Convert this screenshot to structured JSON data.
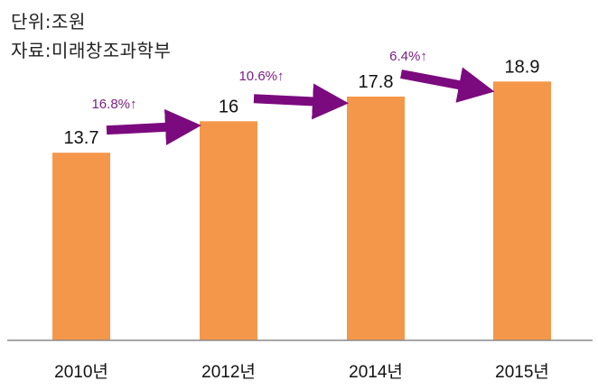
{
  "notes": {
    "unit": "단위:조원",
    "source": "자료:미래창조과학부"
  },
  "colors": {
    "bar": "#F5974A",
    "arrow": "#7B0A7E",
    "growth_label": "#7B1F84",
    "axis": "#8a8a8a"
  },
  "chart_data": {
    "type": "bar",
    "categories": [
      "2010년",
      "2012년",
      "2014년",
      "2015년"
    ],
    "values": [
      13.7,
      16,
      17.8,
      18.9
    ],
    "value_labels": [
      "13.7",
      "16",
      "17.8",
      "18.9"
    ],
    "growth_labels": [
      "16.8%↑",
      "10.6%↑",
      "6.4%↑"
    ],
    "ylim": [
      0,
      23.6
    ],
    "grid": false,
    "title": "",
    "xlabel": "",
    "ylabel": ""
  }
}
